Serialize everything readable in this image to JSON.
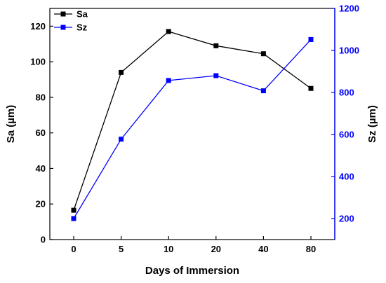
{
  "chart_data": {
    "type": "line",
    "categories": [
      "0",
      "5",
      "10",
      "20",
      "40",
      "80"
    ],
    "xlabel": "Days of Immersion",
    "series": [
      {
        "name": "Sa",
        "axis": "left",
        "color": "#000000",
        "marker": "square",
        "values": [
          16.5,
          94,
          117,
          109,
          104.5,
          85
        ]
      },
      {
        "name": "Sz",
        "axis": "right",
        "color": "#0000ff",
        "marker": "square",
        "values": [
          200,
          578,
          857,
          880,
          808,
          1052
        ]
      }
    ],
    "y_left": {
      "label": "Sa (µm)",
      "lim": [
        0,
        130
      ],
      "ticks": [
        0,
        20,
        40,
        60,
        80,
        100,
        120
      ],
      "color": "#000000"
    },
    "y_right": {
      "label": "Sz (µm)",
      "lim": [
        100,
        1200
      ],
      "ticks": [
        200,
        400,
        600,
        800,
        1000,
        1200
      ],
      "color": "#0000ff"
    },
    "legend_position": "top-left",
    "grid": false
  }
}
